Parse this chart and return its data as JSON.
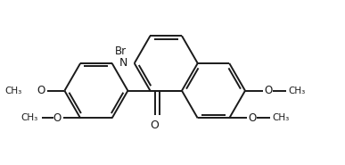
{
  "bg_color": "#ffffff",
  "line_color": "#1a1a1a",
  "line_width": 1.4,
  "dbo": 0.055,
  "shrink": 0.07,
  "figsize": [
    3.87,
    1.85
  ],
  "dpi": 100,
  "xlim": [
    -2.3,
    2.5
  ],
  "ylim": [
    -1.6,
    1.4
  ]
}
